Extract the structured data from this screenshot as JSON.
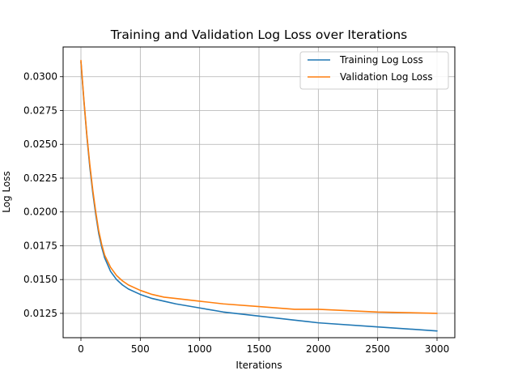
{
  "chart_data": {
    "type": "line",
    "title": "Training and Validation Log Loss over Iterations",
    "xlabel": "Iterations",
    "ylabel": "Log Loss",
    "xlim": [
      -150,
      3150
    ],
    "ylim": [
      0.0107,
      0.0322
    ],
    "xticks": [
      0,
      500,
      1000,
      1500,
      2000,
      2500,
      3000
    ],
    "xtick_labels": [
      "0",
      "500",
      "1000",
      "1500",
      "2000",
      "2500",
      "3000"
    ],
    "yticks": [
      0.0125,
      0.015,
      0.0175,
      0.02,
      0.0225,
      0.025,
      0.0275,
      0.03
    ],
    "ytick_labels": [
      "0.0125",
      "0.0150",
      "0.0175",
      "0.0200",
      "0.0225",
      "0.0250",
      "0.0275",
      "0.0300"
    ],
    "grid": true,
    "legend": "top-right",
    "x": [
      0,
      25,
      50,
      75,
      100,
      125,
      150,
      175,
      200,
      250,
      300,
      350,
      400,
      500,
      600,
      700,
      800,
      1000,
      1200,
      1500,
      1800,
      2000,
      2500,
      3000
    ],
    "series": [
      {
        "name": "Training Log Loss",
        "color": "#1f77b4",
        "values": [
          0.0311,
          0.0282,
          0.0256,
          0.0233,
          0.0214,
          0.0198,
          0.0184,
          0.0174,
          0.0166,
          0.0156,
          0.015,
          0.0146,
          0.0143,
          0.0139,
          0.0136,
          0.0134,
          0.0132,
          0.0129,
          0.0126,
          0.0123,
          0.012,
          0.0118,
          0.0115,
          0.0112
        ]
      },
      {
        "name": "Validation Log Loss",
        "color": "#ff7f0e",
        "values": [
          0.0312,
          0.0283,
          0.0257,
          0.0235,
          0.0216,
          0.02,
          0.0186,
          0.0176,
          0.0168,
          0.0159,
          0.0153,
          0.0149,
          0.0146,
          0.0142,
          0.0139,
          0.0137,
          0.0136,
          0.0134,
          0.0132,
          0.013,
          0.0128,
          0.0128,
          0.0126,
          0.0125
        ]
      }
    ]
  }
}
